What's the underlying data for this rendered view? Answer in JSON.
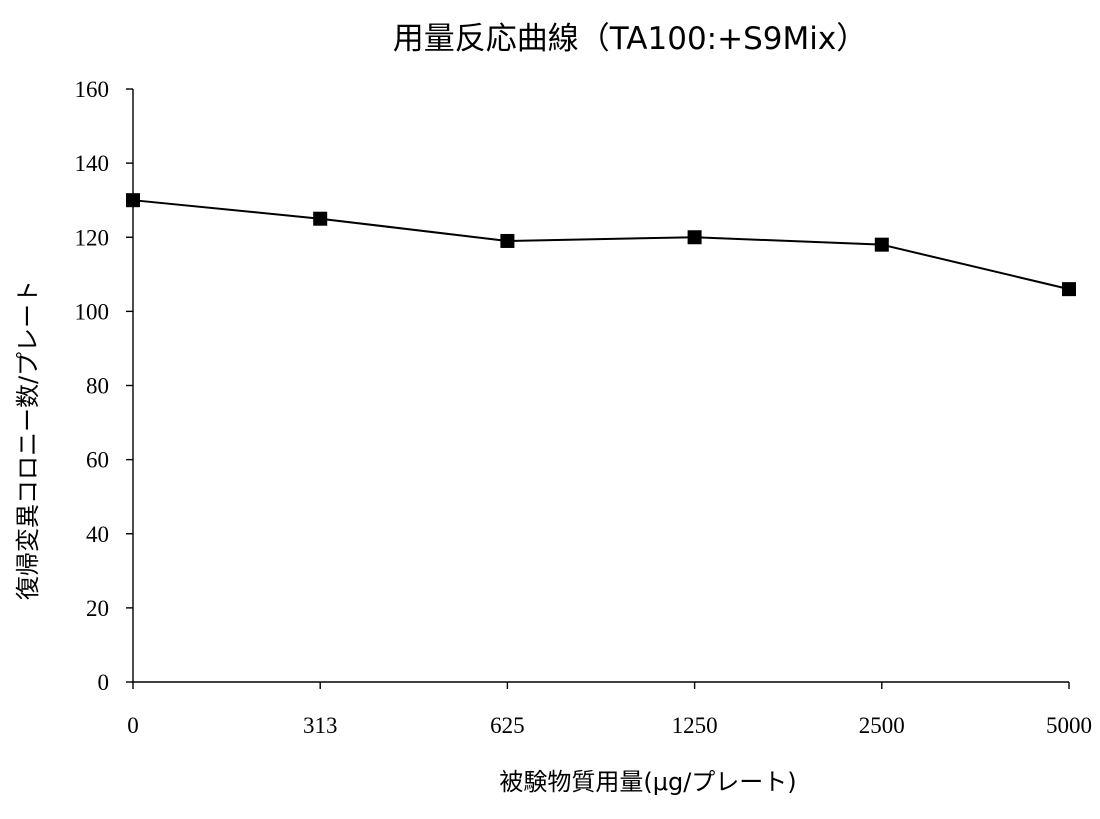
{
  "chart_data": {
    "type": "line",
    "title": "用量反応曲線（TA100:+S9Mix）",
    "xlabel": "被験物質用量(μg/プレート)",
    "ylabel": "復帰変異コロニー数/プレート",
    "categories": [
      "0",
      "313",
      "625",
      "1250",
      "2500",
      "5000"
    ],
    "series": [
      {
        "values": [
          130,
          125,
          119,
          120,
          118,
          106
        ]
      }
    ],
    "ylim": [
      0,
      160
    ],
    "yticks": [
      0,
      20,
      40,
      60,
      80,
      100,
      120,
      140,
      160
    ],
    "grid": false,
    "legend": "none",
    "colors": {
      "line": "#000000",
      "marker": "#000000",
      "background": "#ffffff"
    },
    "marker": "square"
  }
}
